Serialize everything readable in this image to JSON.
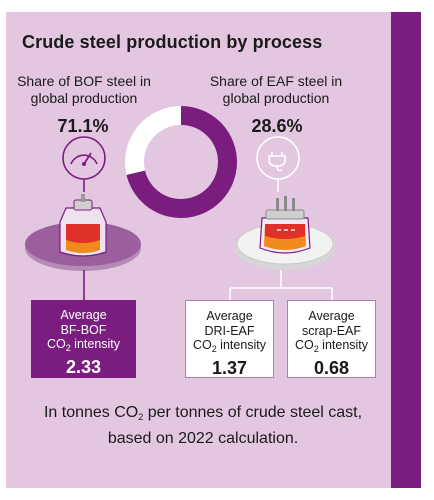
{
  "title": "Crude steel production by process",
  "bof": {
    "label": "Share of BOF steel in global production",
    "pct": "71.1%"
  },
  "eaf": {
    "label": "Share of EAF steel in global production",
    "pct": "28.6%"
  },
  "chart_data": {
    "type": "pie",
    "categories": [
      "BOF",
      "EAF"
    ],
    "values": [
      71.1,
      28.6
    ],
    "colors": [
      "#7b1d7e",
      "#ffffff"
    ],
    "title": "Crude steel production by process"
  },
  "boxes": [
    {
      "l1": "Average",
      "l2": "BF-BOF",
      "l3a": "CO",
      "l3sub": "2",
      "l3b": " intensity",
      "value": "2.33"
    },
    {
      "l1": "Average",
      "l2": "DRI-EAF",
      "l3a": "CO",
      "l3sub": "2",
      "l3b": " intensity",
      "value": "1.37"
    },
    {
      "l1": "Average",
      "l2": "scrap-EAF",
      "l3a": "CO",
      "l3sub": "2",
      "l3b": " intensity",
      "value": "0.68"
    }
  ],
  "note": {
    "a": "In tonnes CO",
    "sub": "2",
    "b": " per tonnes of crude steel cast, based on 2022 calculation."
  },
  "colors": {
    "purple": "#7b1d7e",
    "panel": "#e3c7e1",
    "orange": "#f08a1c",
    "red": "#e0302a"
  },
  "icons": [
    "gauge-icon",
    "power-plug-icon",
    "bof-furnace-icon",
    "eaf-furnace-icon"
  ]
}
